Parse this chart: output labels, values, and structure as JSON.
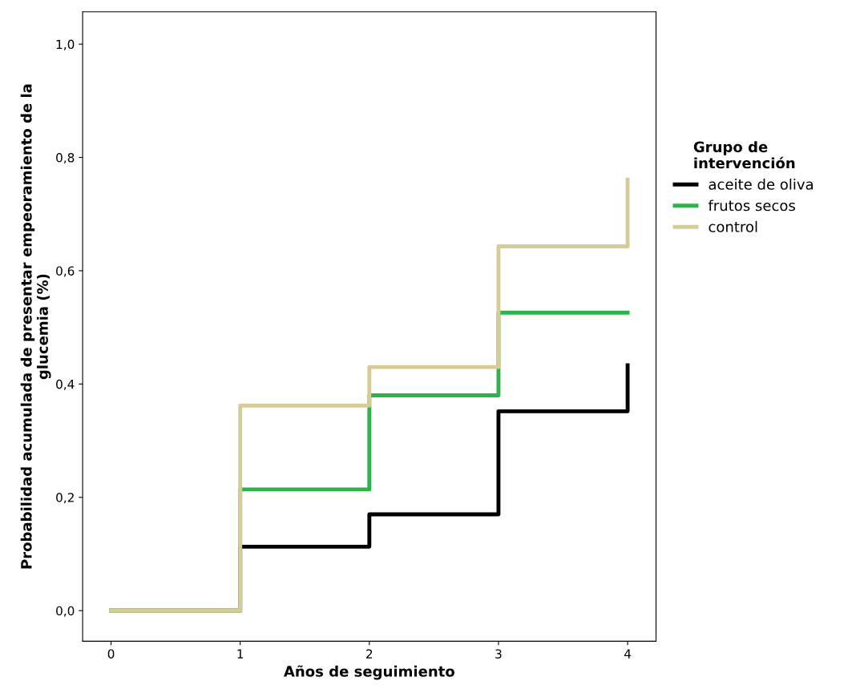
{
  "chart_data": {
    "type": "step",
    "xlabel": "Años de seguimiento",
    "ylabel": "Probabilidad acumulada de presentar empeoramiento de la\nglucemia (%)",
    "legend_title": "Grupo de\nintervención",
    "legend": "right",
    "series": [
      {
        "name": "aceite de oliva",
        "color": "#000000",
        "x": [
          0,
          1,
          2,
          3,
          4,
          4
        ],
        "values": [
          0,
          0.113,
          0.17,
          0.352,
          0.352,
          0.433
        ]
      },
      {
        "name": "frutos secos",
        "color": "#2db34a",
        "x": [
          0,
          1,
          2,
          3,
          4
        ],
        "values": [
          0,
          0.214,
          0.38,
          0.526,
          0.526
        ]
      },
      {
        "name": "control",
        "color": "#d6cc95",
        "x": [
          0,
          1,
          2,
          3,
          4,
          4
        ],
        "values": [
          0,
          0.362,
          0.43,
          0.643,
          0.643,
          0.761
        ]
      }
    ],
    "xlim": [
      -0.22,
      4.22
    ],
    "ylim": [
      -0.054,
      1.057
    ],
    "xticks": [
      0,
      1,
      2,
      3,
      4
    ],
    "yticks": [
      {
        "value": 0,
        "label": "0,0"
      },
      {
        "value": 0.2,
        "label": "0,2"
      },
      {
        "value": 0.4,
        "label": "0,4"
      },
      {
        "value": 0.6,
        "label": "0,6"
      },
      {
        "value": 0.8,
        "label": "0,8"
      },
      {
        "value": 1.0,
        "label": "1,0"
      }
    ],
    "grid": false,
    "line_style": "solid",
    "marker": "none"
  }
}
